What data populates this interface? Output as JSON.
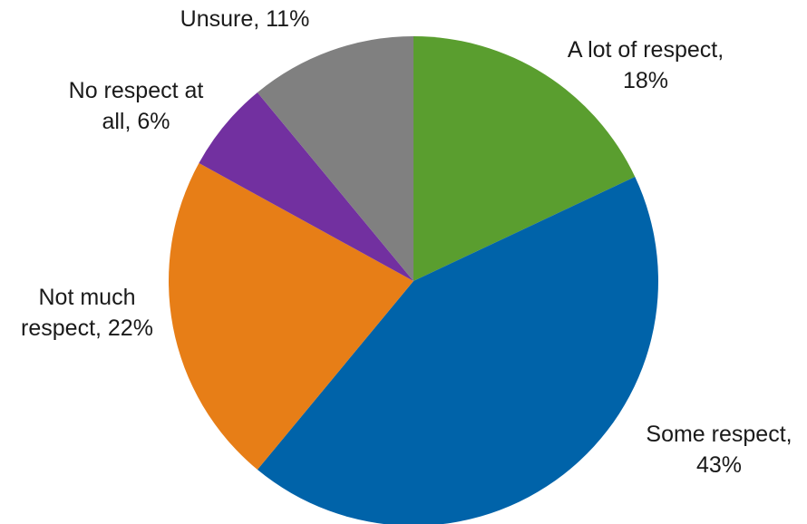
{
  "chart_data": {
    "type": "pie",
    "title": "",
    "slices": [
      {
        "lines": [
          "A lot of respect,",
          "18%"
        ],
        "value": 18,
        "color": "#5a9e2f"
      },
      {
        "lines": [
          "Some respect,",
          "43%"
        ],
        "value": 43,
        "color": "#0063a9"
      },
      {
        "lines": [
          "Not much",
          "respect, 22%"
        ],
        "value": 22,
        "color": "#e77e17"
      },
      {
        "lines": [
          "No respect at",
          "all, 6%"
        ],
        "value": 6,
        "color": "#7230a0"
      },
      {
        "lines": [
          "Unsure, 11%"
        ],
        "value": 11,
        "color": "#808080"
      }
    ],
    "start_angle_deg": 0,
    "direction": "clockwise",
    "legend": "none"
  }
}
